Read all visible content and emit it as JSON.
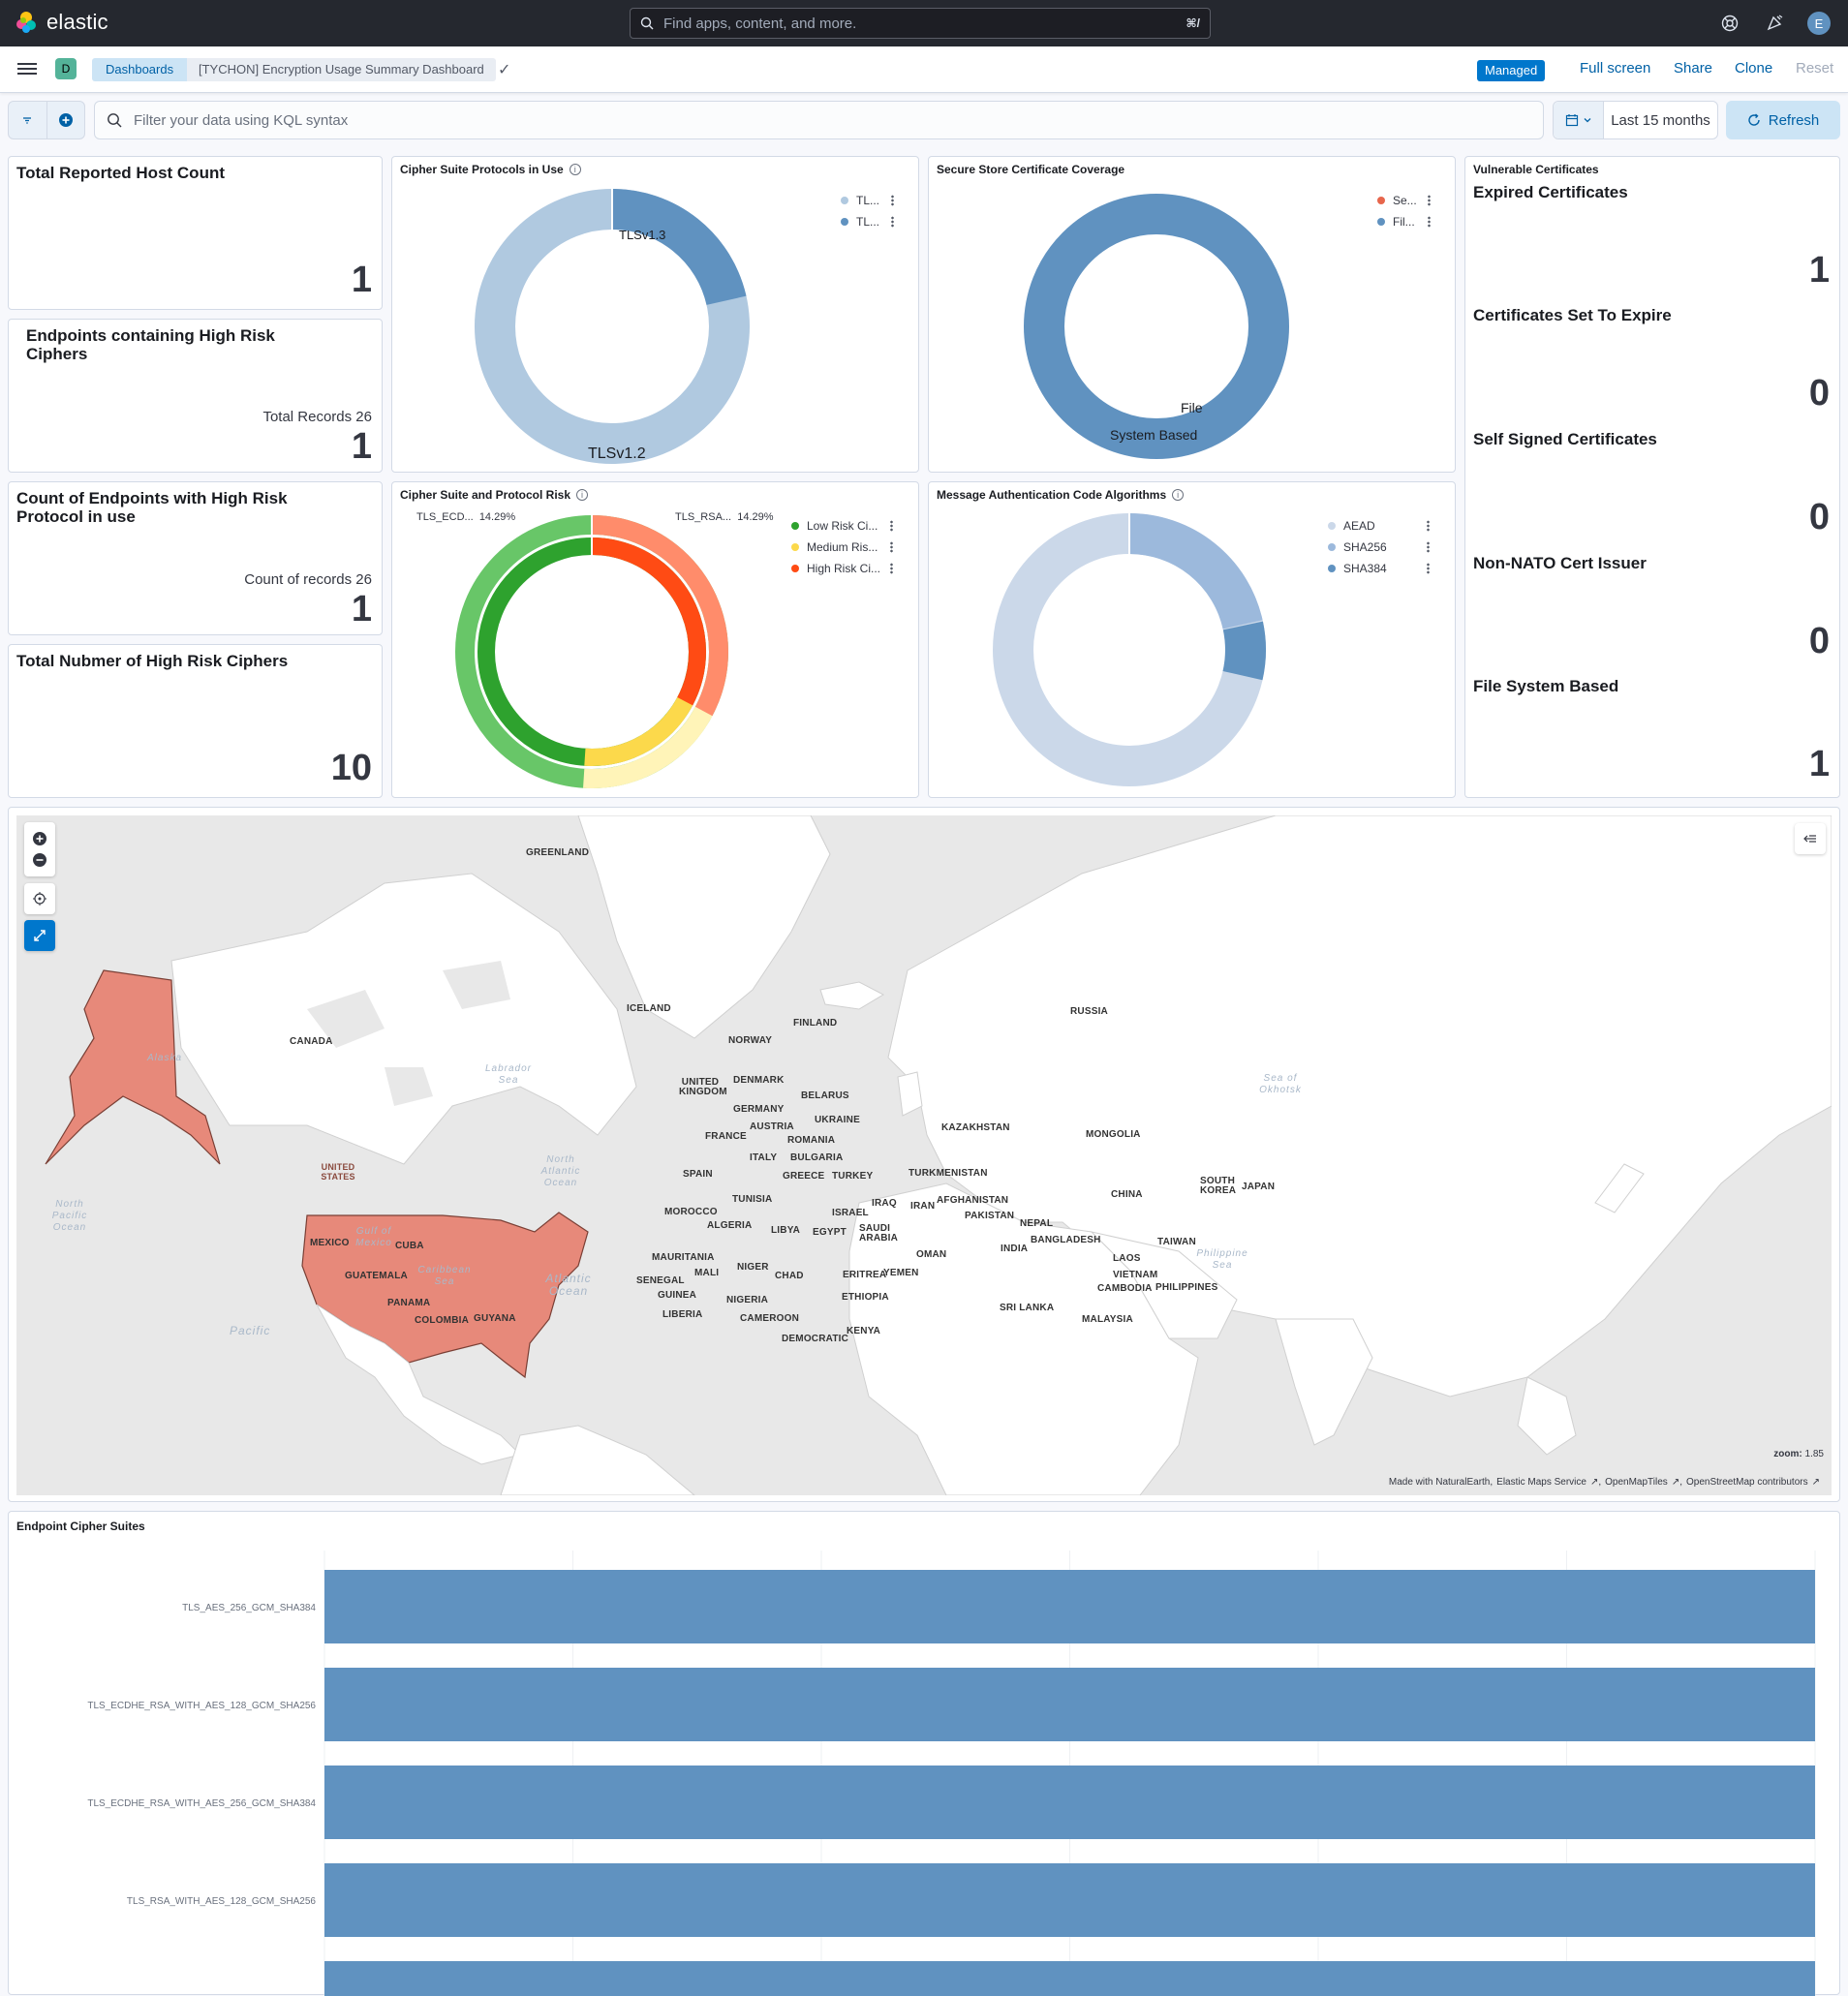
{
  "header": {
    "brand": "elastic",
    "search_placeholder": "Find apps, content, and more.",
    "search_shortcut": "⌘/",
    "avatar_initial": "E"
  },
  "subnav": {
    "space_initial": "D",
    "breadcrumb_root": "Dashboards",
    "breadcrumb_current": "[TYCHON] Encryption Usage Summary Dashboard",
    "managed_badge": "Managed",
    "full_screen": "Full screen",
    "share": "Share",
    "clone": "Clone",
    "reset": "Reset"
  },
  "query": {
    "placeholder": "Filter your data using KQL syntax",
    "time_range": "Last 15 months",
    "refresh": "Refresh"
  },
  "metrics": {
    "total_hosts": {
      "title": "Total Reported Host Count",
      "value": "1"
    },
    "high_risk_ciphers_endpoints": {
      "title": "Endpoints containing High Risk Ciphers",
      "sub": "Total Records 26",
      "value": "1"
    },
    "high_risk_protocol_endpoints": {
      "title": "Count of Endpoints with High Risk Protocol in use",
      "sub": "Count of records 26",
      "value": "1"
    },
    "total_high_risk_ciphers": {
      "title": "Total Nubmer of High Risk Ciphers",
      "value": "10"
    }
  },
  "vulnerable": {
    "title": "Vulnerable Certificates",
    "items": [
      {
        "title": "Expired Certificates",
        "value": "1"
      },
      {
        "title": "Certificates Set To Expire",
        "value": "0"
      },
      {
        "title": "Self Signed Certificates",
        "value": "0"
      },
      {
        "title": "Non-NATO Cert Issuer",
        "value": "0"
      },
      {
        "title": "File System Based",
        "value": "1"
      }
    ]
  },
  "charts": {
    "protocols": {
      "title": "Cipher Suite Protocols in Use",
      "legend": [
        "TL...",
        "TL..."
      ],
      "labels": [
        "TLSv1.3",
        "TLSv1.2"
      ],
      "colors": [
        "#b0c9e0",
        "#6092c0"
      ]
    },
    "secure_store": {
      "title": "Secure Store Certificate Coverage",
      "legend": [
        "Se...",
        "Fil..."
      ],
      "labels": [
        "File",
        "System Based"
      ],
      "colors": [
        "#e7664c",
        "#6092c0"
      ]
    },
    "risk": {
      "title": "Cipher Suite and Protocol Risk",
      "legend": [
        "Low Risk Ci...",
        "Medium Ris...",
        "High Risk Ci..."
      ],
      "colors": [
        "#2ea22e",
        "#fcd94b",
        "#ff4b14"
      ],
      "callouts": [
        {
          "label": "TLS_ECD...",
          "value": "14.29%"
        },
        {
          "label": "TLS_RSA...",
          "value": "14.29%"
        }
      ]
    },
    "mac": {
      "title": "Message Authentication Code Algorithms",
      "legend": [
        "AEAD",
        "SHA256",
        "SHA384"
      ],
      "colors": [
        "#cbd8e9",
        "#9cb9dc",
        "#6092c0"
      ]
    }
  },
  "map": {
    "zoom_label": "zoom:",
    "zoom_value": "1.85",
    "attribution": [
      "Made with NaturalEarth,",
      "Elastic Maps Service",
      "OpenMapTiles",
      "OpenStreetMap contributors"
    ],
    "countries": [
      "GREENLAND",
      "ICELAND",
      "CANADA",
      "UNITED STATES",
      "RUSSIA",
      "FINLAND",
      "NORWAY",
      "UNITED KINGDOM",
      "DENMARK",
      "BELARUS",
      "GERMANY",
      "UKRAINE",
      "FRANCE",
      "AUSTRIA",
      "ROMANIA",
      "KAZAKHSTAN",
      "MONGOLIA",
      "ITALY",
      "BULGARIA",
      "SPAIN",
      "GREECE",
      "TURKEY",
      "TURKMENISTAN",
      "SOUTH KOREA",
      "JAPAN",
      "CHINA",
      "AFGHANISTAN",
      "TUNISIA",
      "IRAQ",
      "IRAN",
      "MOROCCO",
      "ISRAEL",
      "PAKISTAN",
      "NEPAL",
      "ALGERIA",
      "LIBYA",
      "EGYPT",
      "SAUDI ARABIA",
      "BANGLADESH",
      "TAIWAN",
      "INDIA",
      "OMAN",
      "MEXICO",
      "CUBA",
      "MAURITANIA",
      "NIGER",
      "MALI",
      "CHAD",
      "ERITREA",
      "YEMEN",
      "LAOS",
      "VIETNAM",
      "SENEGAL",
      "GUATEMALA",
      "GUINEA",
      "NIGERIA",
      "ETHIOPIA",
      "CAMBODIA",
      "PHILIPPINES",
      "PANAMA",
      "LIBERIA",
      "CAMEROON",
      "SRI LANKA",
      "COLOMBIA",
      "GUYANA",
      "KENYA",
      "MALAYSIA",
      "DEMOCRATIC"
    ],
    "oceans": [
      "Alaska",
      "Labrador Sea",
      "North Atlantic Ocean",
      "North Pacific Ocean",
      "Gulf of Mexico",
      "Caribbean Sea",
      "Atlantic Ocean",
      "Pacific",
      "Sea of Okhotsk",
      "Philippine Sea"
    ]
  },
  "bars": {
    "title": "Endpoint Cipher Suites",
    "chart_data": {
      "type": "bar",
      "orientation": "horizontal",
      "categories": [
        "TLS_AES_256_GCM_SHA384",
        "TLS_ECDHE_RSA_WITH_AES_128_GCM_SHA256",
        "TLS_ECDHE_RSA_WITH_AES_256_GCM_SHA384",
        "TLS_RSA_WITH_AES_128_GCM_SHA256"
      ],
      "values": [
        1,
        1,
        1,
        1
      ],
      "color": "#6092c0"
    }
  }
}
